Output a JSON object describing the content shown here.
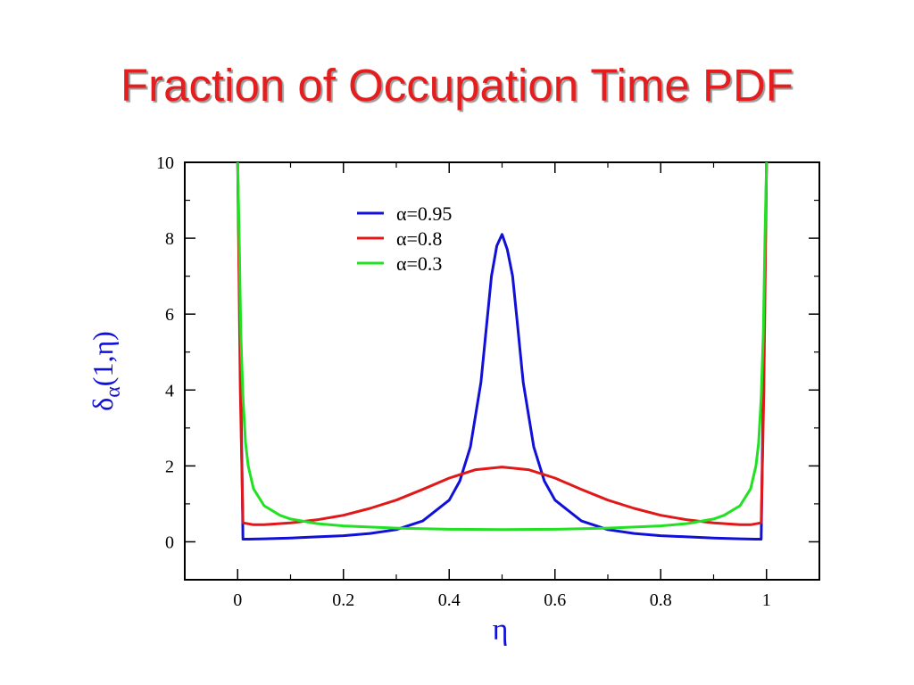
{
  "slide": {
    "title": "Fraction of Occupation Time PDF"
  },
  "chart_data": {
    "type": "line",
    "xlabel": "η",
    "ylabel": {
      "main": "δ",
      "subscript": "α",
      "args": "(1,η)"
    },
    "xlim": [
      -0.1,
      1.1
    ],
    "ylim": [
      -1,
      10
    ],
    "x_ticks": [
      0,
      0.2,
      0.4,
      0.6,
      0.8,
      1
    ],
    "x_tick_labels": [
      "0",
      "0.2",
      "0.4",
      "0.6",
      "0.8",
      "1"
    ],
    "y_ticks": [
      0,
      2,
      4,
      6,
      8,
      10
    ],
    "y_tick_labels": [
      "0",
      "2",
      "4",
      "6",
      "8",
      "10"
    ],
    "grid": false,
    "legend_position": "top-center",
    "series": [
      {
        "name": "α=0.95",
        "color": "#1010d8",
        "x": [
          0.0,
          0.01,
          0.02,
          0.05,
          0.1,
          0.15,
          0.2,
          0.25,
          0.3,
          0.35,
          0.4,
          0.42,
          0.44,
          0.46,
          0.47,
          0.48,
          0.49,
          0.5,
          0.51,
          0.52,
          0.53,
          0.54,
          0.56,
          0.58,
          0.6,
          0.65,
          0.7,
          0.75,
          0.8,
          0.85,
          0.9,
          0.95,
          0.98,
          0.99,
          1.0
        ],
        "y": [
          10,
          0.07,
          0.07,
          0.08,
          0.1,
          0.13,
          0.16,
          0.22,
          0.32,
          0.55,
          1.1,
          1.6,
          2.5,
          4.2,
          5.6,
          7.0,
          7.8,
          8.1,
          7.7,
          7.0,
          5.6,
          4.2,
          2.5,
          1.6,
          1.1,
          0.55,
          0.32,
          0.22,
          0.16,
          0.13,
          0.1,
          0.08,
          0.07,
          0.07,
          10
        ]
      },
      {
        "name": "α=0.8",
        "color": "#e01818",
        "x": [
          0.0,
          0.005,
          0.01,
          0.03,
          0.05,
          0.1,
          0.15,
          0.2,
          0.25,
          0.3,
          0.35,
          0.4,
          0.45,
          0.5,
          0.55,
          0.6,
          0.65,
          0.7,
          0.75,
          0.8,
          0.85,
          0.9,
          0.95,
          0.97,
          0.99,
          0.995,
          1.0
        ],
        "y": [
          10,
          4.0,
          0.5,
          0.45,
          0.45,
          0.5,
          0.58,
          0.7,
          0.88,
          1.1,
          1.38,
          1.68,
          1.9,
          1.97,
          1.9,
          1.68,
          1.38,
          1.1,
          0.88,
          0.7,
          0.58,
          0.5,
          0.45,
          0.45,
          0.5,
          4.0,
          10
        ]
      },
      {
        "name": "α=0.3",
        "color": "#22e022",
        "x": [
          0.0,
          0.003,
          0.006,
          0.01,
          0.015,
          0.02,
          0.03,
          0.05,
          0.08,
          0.1,
          0.15,
          0.2,
          0.3,
          0.4,
          0.5,
          0.6,
          0.7,
          0.8,
          0.85,
          0.9,
          0.92,
          0.95,
          0.97,
          0.98,
          0.985,
          0.99,
          0.994,
          0.997,
          1.0
        ],
        "y": [
          10,
          8.0,
          5.5,
          3.8,
          2.6,
          2.0,
          1.4,
          0.95,
          0.7,
          0.6,
          0.48,
          0.42,
          0.36,
          0.33,
          0.32,
          0.33,
          0.36,
          0.42,
          0.48,
          0.6,
          0.7,
          0.95,
          1.4,
          2.0,
          2.6,
          3.8,
          5.5,
          8.0,
          10
        ]
      }
    ]
  }
}
